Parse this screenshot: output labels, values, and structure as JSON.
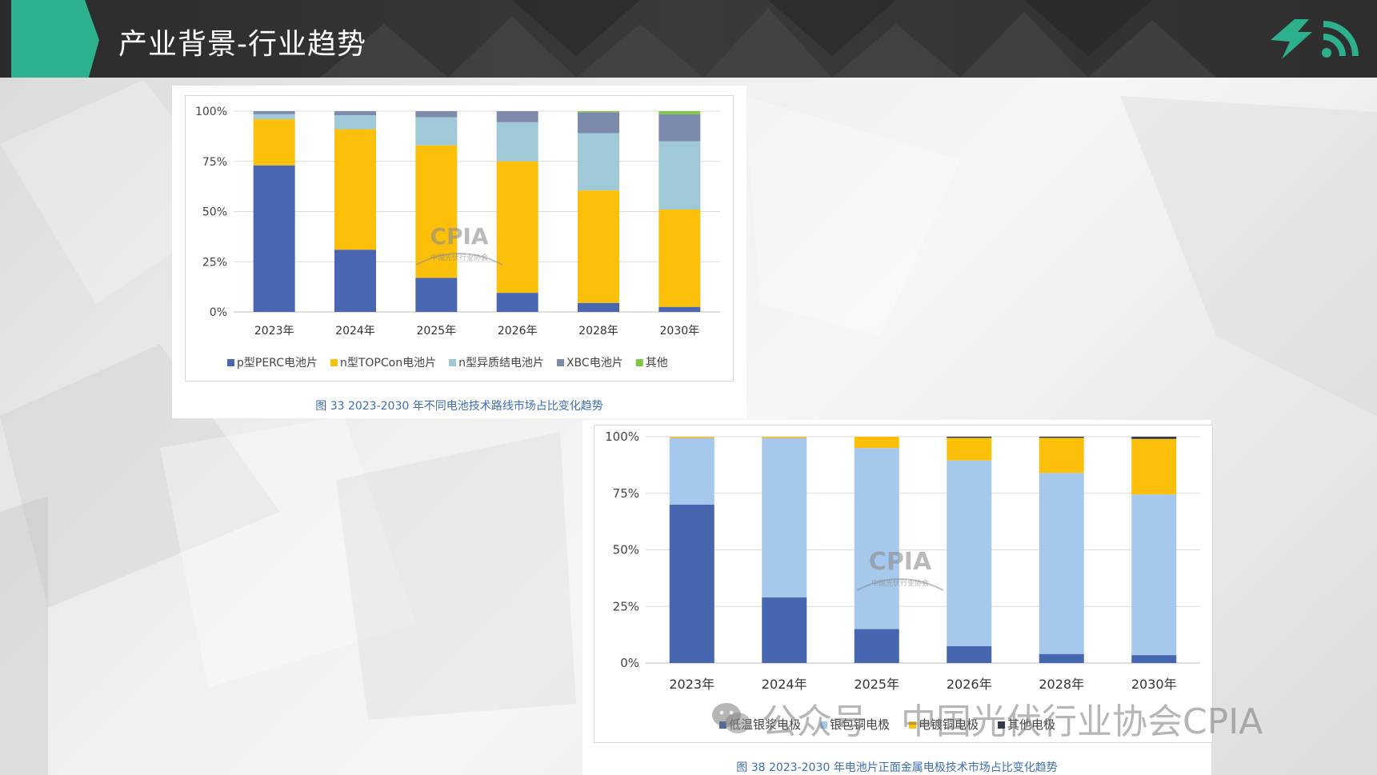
{
  "header": {
    "title": "产业背景-行业趋势"
  },
  "colors": {
    "accent": "#2db08e",
    "header_bg": "#333333"
  },
  "chart1": {
    "caption": "图 33    2023-2030 年不同电池技术路线市场占比变化趋势",
    "watermark_text": "CPIA",
    "watermark_sub": "中国光伏行业协会"
  },
  "chart2": {
    "caption": "图 38    2023-2030 年电池片正面金属电极技术市场占比变化趋势",
    "watermark_text": "CPIA",
    "watermark_sub": "中国光伏行业协会"
  },
  "watermark": {
    "text": "公众号 · 中国光伏行业协会CPIA"
  },
  "chart_data": [
    {
      "type": "bar",
      "stacked": true,
      "categories": [
        "2023年",
        "2024年",
        "2025年",
        "2026年",
        "2028年",
        "2030年"
      ],
      "yticks": [
        "0%",
        "25%",
        "50%",
        "75%",
        "100%"
      ],
      "ylim": [
        0,
        100
      ],
      "legend_position": "bottom",
      "series": [
        {
          "name": "p型PERC电池片",
          "color": "#4a66b0",
          "values": [
            73,
            31,
            17,
            9.5,
            4.5,
            2.5
          ]
        },
        {
          "name": "n型TOPCon电池片",
          "color": "#fcc00a",
          "values": [
            23,
            60,
            66,
            65.5,
            56,
            48.5
          ]
        },
        {
          "name": "n型异质结电池片",
          "color": "#9fc9d6",
          "values": [
            2.5,
            7,
            14,
            19.5,
            28.5,
            34
          ]
        },
        {
          "name": "XBC电池片",
          "color": "#7d8aab",
          "values": [
            1.5,
            2,
            3,
            5.5,
            10.5,
            13.5
          ]
        },
        {
          "name": "其他",
          "color": "#7fc643",
          "values": [
            0,
            0,
            0,
            0,
            0.5,
            1.5
          ]
        }
      ]
    },
    {
      "type": "bar",
      "stacked": true,
      "categories": [
        "2023年",
        "2024年",
        "2025年",
        "2026年",
        "2028年",
        "2030年"
      ],
      "yticks": [
        "0%",
        "25%",
        "50%",
        "75%",
        "100%"
      ],
      "ylim": [
        0,
        100
      ],
      "legend_position": "bottom",
      "series": [
        {
          "name": "低温银浆电极",
          "color": "#4766b0",
          "values": [
            70,
            29,
            15,
            7.5,
            4,
            3.5
          ]
        },
        {
          "name": "银包铜电极",
          "color": "#a6c8ec",
          "values": [
            29.5,
            70.5,
            80,
            82,
            80,
            71
          ]
        },
        {
          "name": "电镀铜电极",
          "color": "#fcc00a",
          "values": [
            0.5,
            0.5,
            5,
            10,
            15.5,
            24.5
          ]
        },
        {
          "name": "其他电极",
          "color": "#333c4a",
          "values": [
            0,
            0,
            0,
            0.5,
            0.5,
            1
          ]
        }
      ]
    }
  ]
}
